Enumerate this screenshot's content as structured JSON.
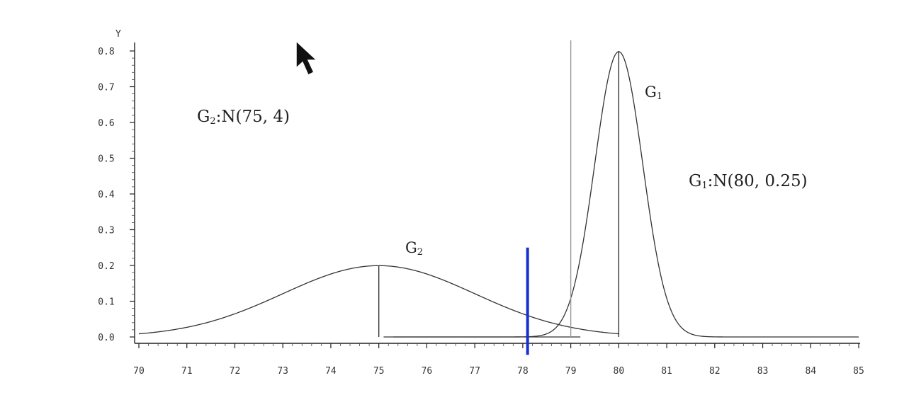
{
  "chart_data": {
    "type": "line",
    "ylabel": "Y",
    "xlim": [
      70,
      85
    ],
    "ylim": [
      0,
      0.8
    ],
    "x_ticks": [
      "70",
      "71",
      "72",
      "73",
      "74",
      "75",
      "76",
      "77",
      "78",
      "79",
      "80",
      "81",
      "82",
      "83",
      "84",
      "85"
    ],
    "y_ticks": [
      "0.0",
      "0.1",
      "0.2",
      "0.3",
      "0.4",
      "0.5",
      "0.6",
      "0.7",
      "0.8"
    ],
    "series": [
      {
        "name": "G1",
        "mean": 80,
        "variance": 0.25
      },
      {
        "name": "G2",
        "mean": 75,
        "variance": 4
      }
    ],
    "annotations": {
      "g2_formula_main": "G",
      "g2_formula_sub": "2",
      "g2_formula_rest": ":N(75, 4)",
      "g1_formula_main": "G",
      "g1_formula_sub": "1",
      "g1_formula_rest": ":N(80, 0.25)",
      "g1_curve_label_main": "G",
      "g1_curve_label_sub": "1",
      "g2_curve_label_main": "G",
      "g2_curve_label_sub": "2"
    },
    "reference_lines": [
      {
        "x": 75,
        "y_top": 0.2,
        "color": "#333333"
      },
      {
        "x": 80,
        "y_top": 0.8,
        "color": "#333333"
      },
      {
        "x": 79,
        "y_top": 0.83,
        "color": "#999999"
      },
      {
        "x": 78.1,
        "y_top": 0.25,
        "y_bottom": -0.05,
        "color": "#1a2fd0",
        "emphasis": true
      }
    ],
    "grid": false
  }
}
